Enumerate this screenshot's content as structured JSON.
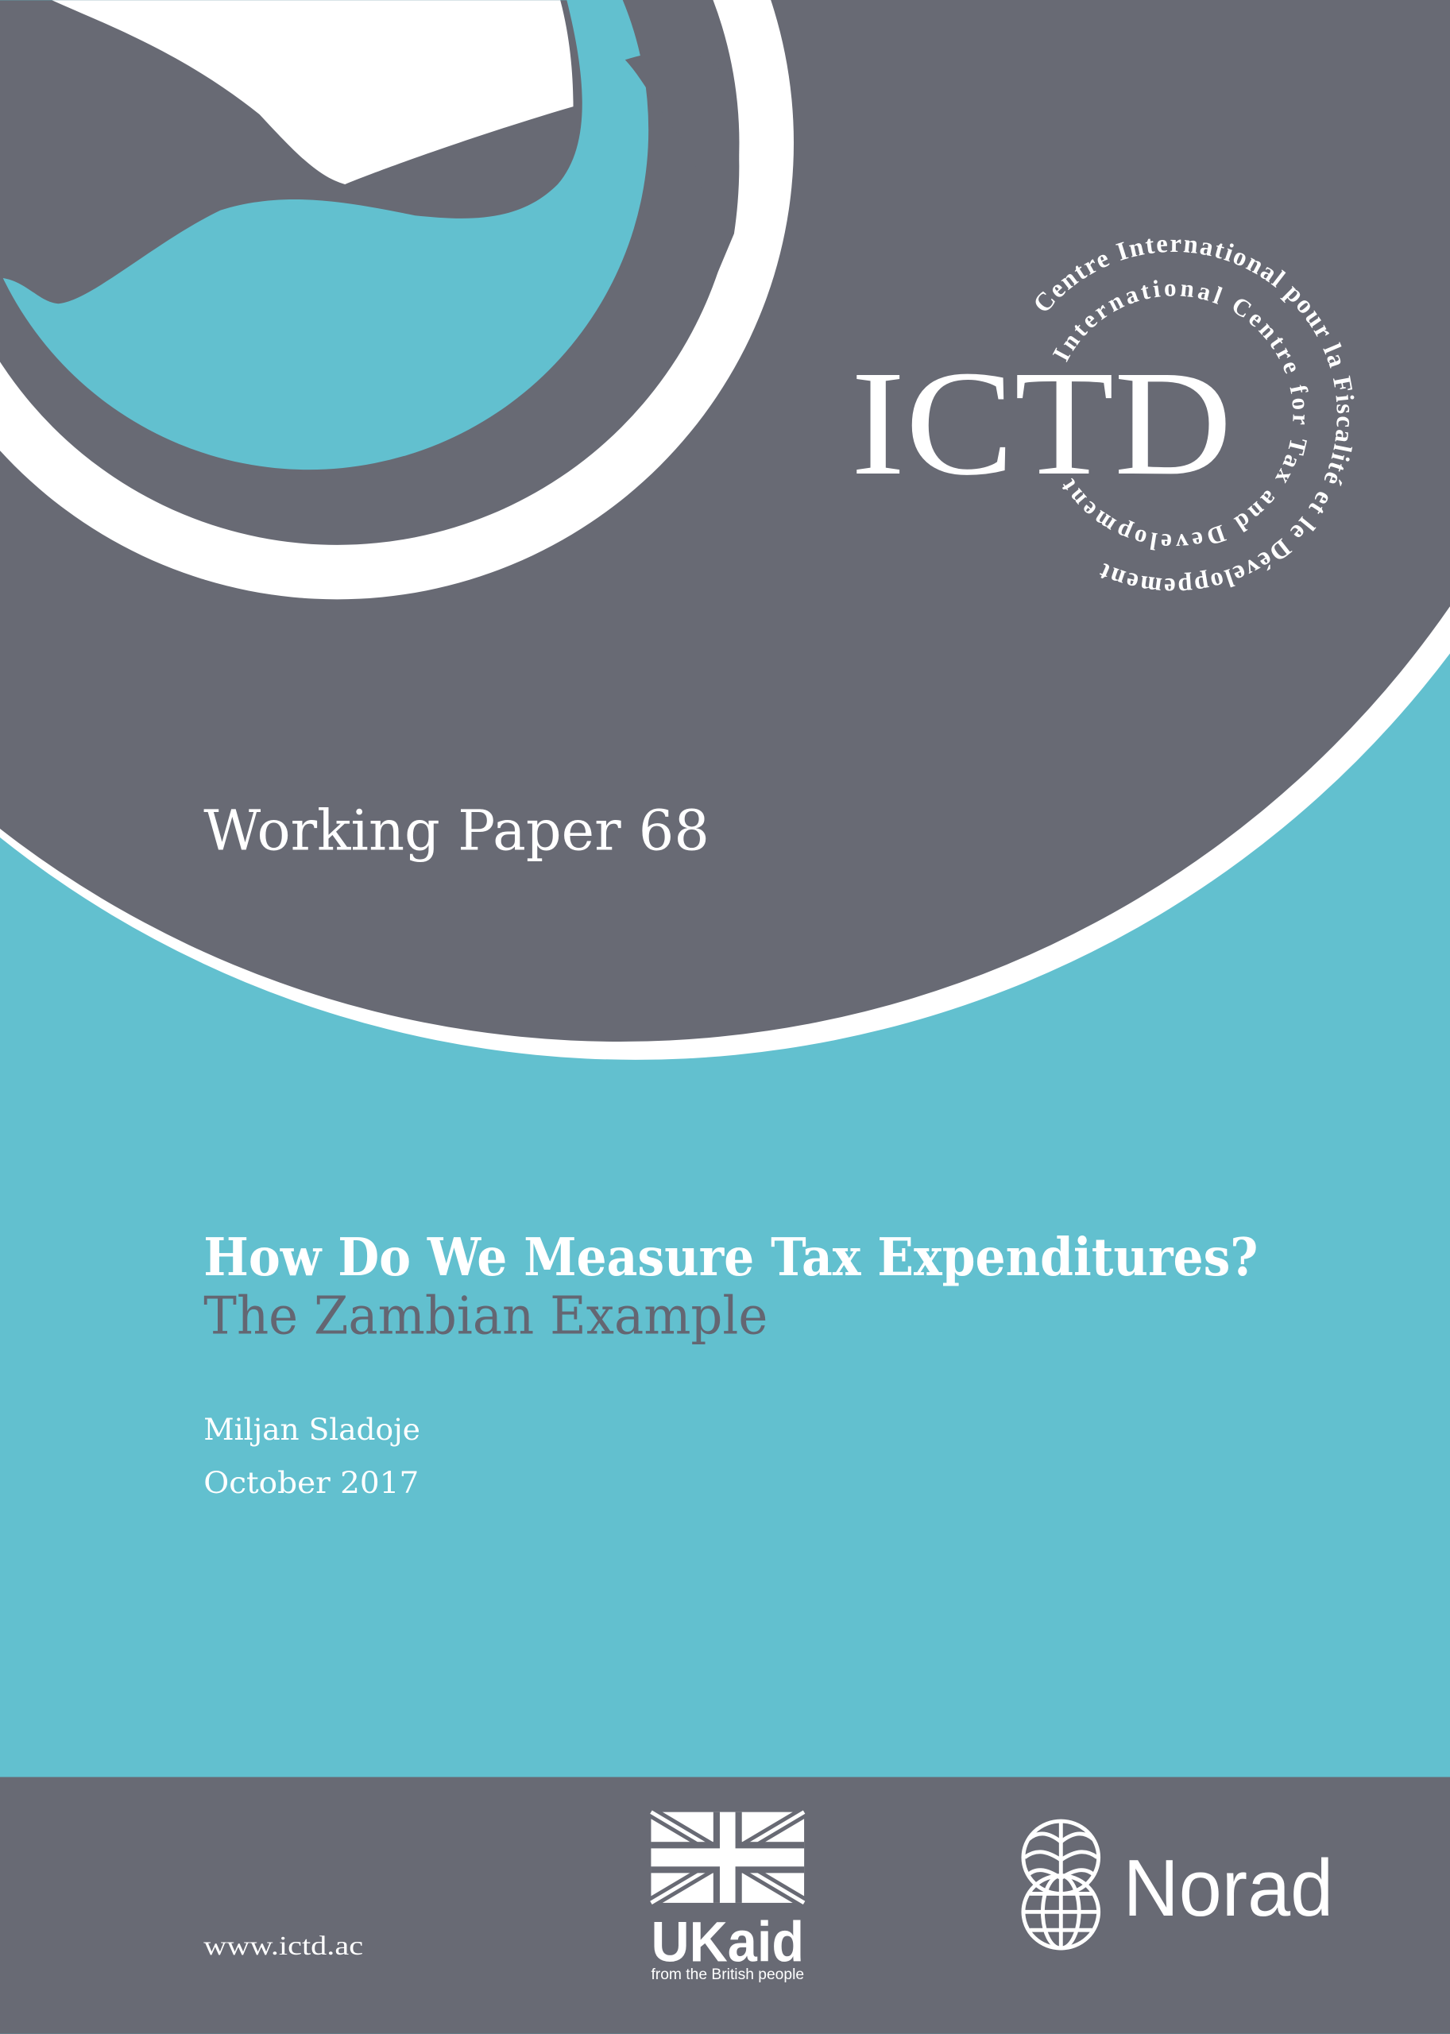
{
  "colors": {
    "gray": "#686a74",
    "teal": "#62c0cf",
    "white": "#ffffff",
    "subtitle": "#646672"
  },
  "logo": {
    "acronym": "ICTD",
    "outer_ring": "Centre International pour la Fiscalité et le Développement",
    "inner_ring": "International Centre for Tax and Development"
  },
  "series": "Working Paper 68",
  "title": "How Do We Measure Tax Expenditures?",
  "subtitle": "The Zambian Example",
  "author": "Miljan Sladoje",
  "date": "October  2017",
  "footer": {
    "website": "www.ictd.ac",
    "ukaid": {
      "wordmark": "UKaid",
      "tagline": "from the British people"
    },
    "norad": {
      "wordmark": "Norad"
    }
  }
}
